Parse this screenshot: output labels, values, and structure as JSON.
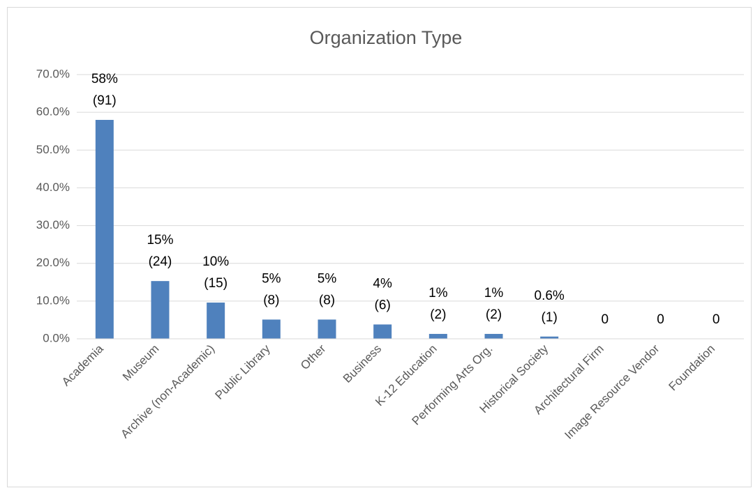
{
  "chart_data": {
    "type": "bar",
    "title": "Organization Type",
    "categories": [
      "Academia",
      "Museum",
      "Archive (non-Academic)",
      "Public Library",
      "Other",
      "Business",
      "K-12 Education",
      "Performing Arts Org.",
      "Historical Society",
      "Architectural Firm",
      "Image Resource Vendor",
      "Foundation"
    ],
    "values": [
      58.0,
      15.3,
      9.6,
      5.1,
      5.1,
      3.8,
      1.3,
      1.3,
      0.6,
      0,
      0,
      0
    ],
    "value_labels": [
      "58%",
      "15%",
      "10%",
      "5%",
      "5%",
      "4%",
      "1%",
      "1%",
      "0.6%",
      "0",
      "0",
      "0"
    ],
    "count_labels": [
      "(91)",
      "(24)",
      "(15)",
      "(8)",
      "(8)",
      "(6)",
      "(2)",
      "(2)",
      "(1)",
      null,
      null,
      null
    ],
    "color": "#4f81bd",
    "ylim": [
      0,
      70
    ],
    "yticks": [
      {
        "value": 0,
        "label": "0.0%"
      },
      {
        "value": 10,
        "label": "10.0%"
      },
      {
        "value": 20,
        "label": "20.0%"
      },
      {
        "value": 30,
        "label": "30.0%"
      },
      {
        "value": 40,
        "label": "40.0%"
      },
      {
        "value": 50,
        "label": "50.0%"
      },
      {
        "value": 60,
        "label": "60.0%"
      },
      {
        "value": 70,
        "label": "70.0%"
      }
    ],
    "grid": true
  }
}
